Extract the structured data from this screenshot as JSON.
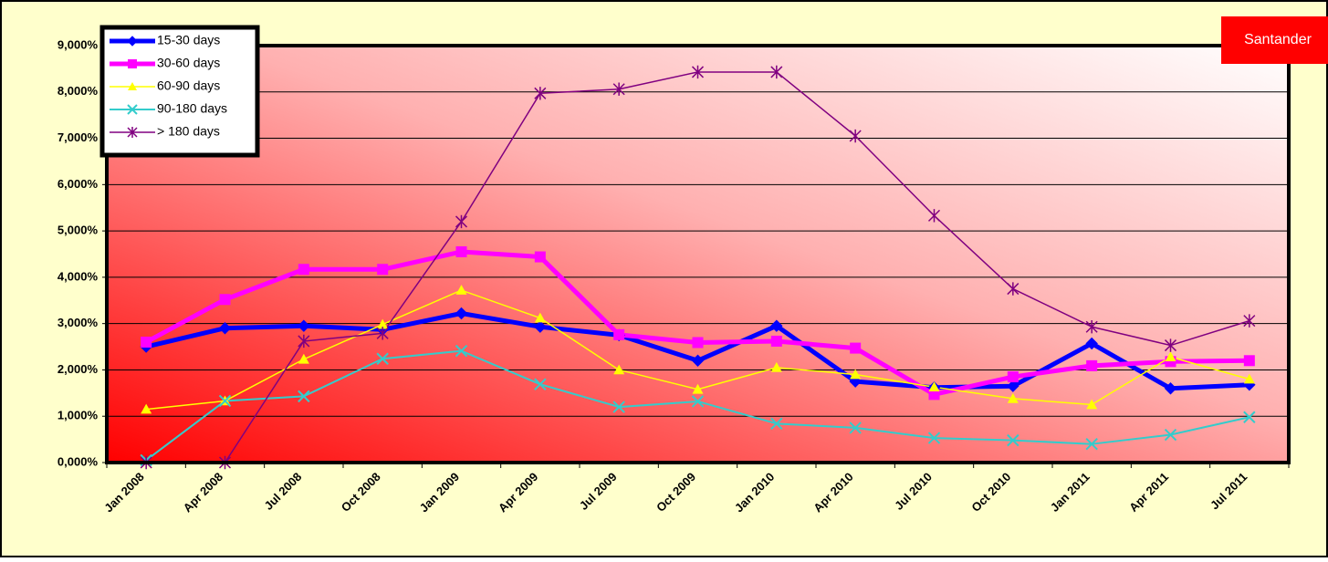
{
  "chart_data": {
    "type": "line",
    "logo": "Santander",
    "categories": [
      "Jan 2008",
      "Apr 2008",
      "Jul 2008",
      "Oct 2008",
      "Jan 2009",
      "Apr 2009",
      "Jul 2009",
      "Oct 2009",
      "Jan 2010",
      "Apr 2010",
      "Jul 2010",
      "Oct 2010",
      "Jan 2011",
      "Apr 2011",
      "Jul 2011"
    ],
    "ylim": [
      0,
      9
    ],
    "yticks": [
      {
        "value": 0,
        "label": "0,000%"
      },
      {
        "value": 1,
        "label": "1,000%"
      },
      {
        "value": 2,
        "label": "2,000%"
      },
      {
        "value": 3,
        "label": "3,000%"
      },
      {
        "value": 4,
        "label": "4,000%"
      },
      {
        "value": 5,
        "label": "5,000%"
      },
      {
        "value": 6,
        "label": "6,000%"
      },
      {
        "value": 7,
        "label": "7,000%"
      },
      {
        "value": 8,
        "label": "8,000%"
      },
      {
        "value": 9,
        "label": "9,000%"
      }
    ],
    "grid": true,
    "legend": "top-left",
    "series": [
      {
        "name": "15-30 days",
        "color": "#0000ff",
        "marker": "diamond",
        "values": [
          2.5,
          2.9,
          2.95,
          2.87,
          3.22,
          2.93,
          2.75,
          2.2,
          2.95,
          1.75,
          1.62,
          1.65,
          2.57,
          1.6,
          1.68
        ]
      },
      {
        "name": "30-60 days",
        "color": "#ff00ff",
        "marker": "square",
        "values": [
          2.6,
          3.52,
          4.17,
          4.17,
          4.55,
          4.44,
          2.76,
          2.59,
          2.62,
          2.47,
          1.47,
          1.85,
          2.09,
          2.18,
          2.2
        ]
      },
      {
        "name": "60-90 days",
        "color": "#ffff00",
        "marker": "triangle",
        "values": [
          1.15,
          1.33,
          2.23,
          2.98,
          3.72,
          3.12,
          2.0,
          1.58,
          2.05,
          1.9,
          1.63,
          1.38,
          1.25,
          2.28,
          1.8
        ]
      },
      {
        "name": "90-180 days",
        "color": "#33cccc",
        "marker": "x",
        "values": [
          0.05,
          1.33,
          1.43,
          2.24,
          2.41,
          1.69,
          1.2,
          1.32,
          0.84,
          0.75,
          0.53,
          0.48,
          0.4,
          0.6,
          0.98
        ]
      },
      {
        "name": "> 180 days",
        "color": "#800080",
        "marker": "star",
        "values": [
          0,
          0,
          2.62,
          2.79,
          5.2,
          7.97,
          8.06,
          8.43,
          8.43,
          7.05,
          5.33,
          3.75,
          2.93,
          2.53,
          3.06
        ]
      }
    ]
  }
}
